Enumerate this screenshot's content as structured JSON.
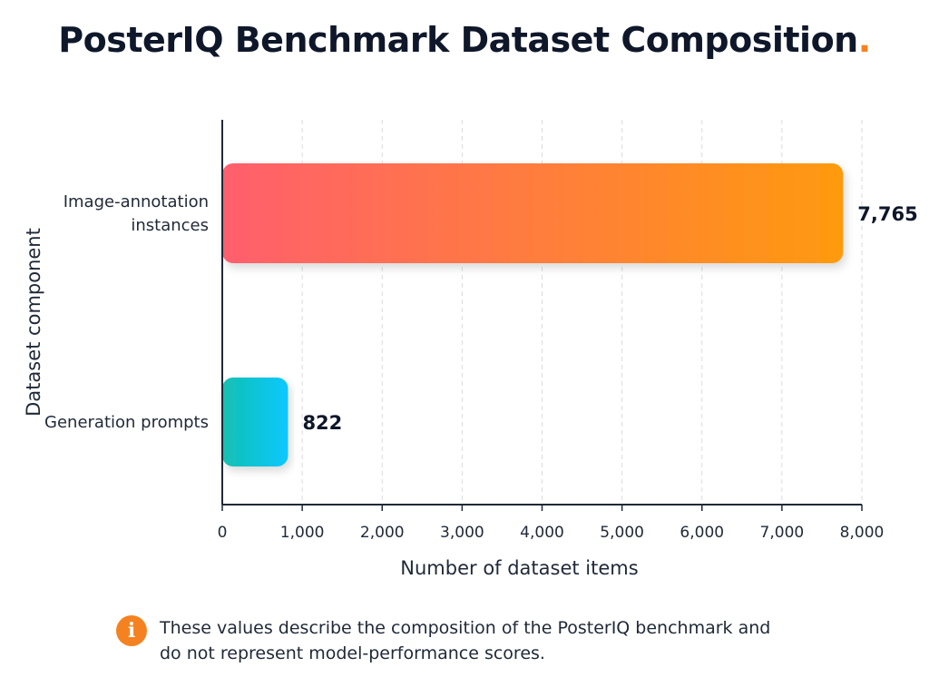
{
  "page": {
    "title": "PosterIQ Benchmark Dataset Composition",
    "title_dot": ".",
    "note_icon": "info-icon",
    "note_text": "These values describe the composition of the PosterIQ benchmark and\ndo not represent model-performance scores."
  },
  "chart_data": {
    "type": "bar",
    "orientation": "horizontal",
    "title": "PosterIQ Benchmark Dataset Composition",
    "xlabel": "Number of dataset items",
    "ylabel": "Dataset component",
    "xlim": [
      0,
      8000
    ],
    "xticks": [
      0,
      1000,
      2000,
      3000,
      4000,
      5000,
      6000,
      7000,
      8000
    ],
    "xtick_labels": [
      "0",
      "1,000",
      "2,000",
      "3,000",
      "4,000",
      "5,000",
      "6,000",
      "7,000",
      "8,000"
    ],
    "grid": "vertical dashed",
    "categories": [
      [
        "Image-annotation",
        "instances"
      ],
      [
        "Generation prompts"
      ]
    ],
    "values": [
      7765,
      822
    ],
    "value_labels": [
      "7,765",
      "822"
    ],
    "colors": [
      [
        "#ff5f6d",
        "#ff9a0e"
      ],
      [
        "#14c0b0",
        "#08c8ff"
      ]
    ]
  }
}
